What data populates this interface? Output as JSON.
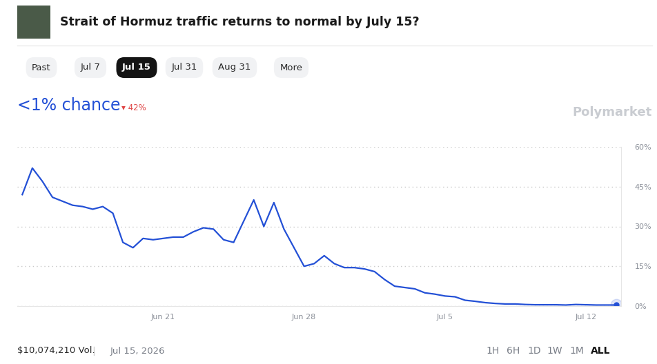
{
  "header": {
    "title": "Strait of Hormuz traffic returns to normal by July 15?",
    "tabs": [
      "Past",
      "Jul 7",
      "Jul 15",
      "Jul 31",
      "Aug 31",
      "More"
    ],
    "selected_tab": "Jul 15"
  },
  "headline": {
    "chance": "<1% chance",
    "change": "▾ 42%"
  },
  "brand": "Polymarket",
  "footer": {
    "volume": "$10,074,210 Vol.",
    "end_date": "Jul 15, 2026",
    "ranges": [
      "1H",
      "6H",
      "1D",
      "1W",
      "1M",
      "ALL"
    ],
    "selected_range": "ALL"
  },
  "chart_data": {
    "type": "line",
    "color": "#2350d6",
    "grid": true,
    "categories": [
      null,
      null,
      null,
      null,
      null,
      null,
      null,
      null,
      null,
      null,
      null,
      null,
      null,
      null,
      "Jun 21",
      null,
      null,
      null,
      null,
      null,
      null,
      null,
      null,
      null,
      null,
      null,
      null,
      null,
      "Jun 28",
      null,
      null,
      null,
      null,
      null,
      null,
      null,
      null,
      null,
      null,
      null,
      null,
      null,
      "Jul 5",
      null,
      null,
      null,
      null,
      null,
      null,
      null,
      null,
      null,
      null,
      null,
      null,
      null,
      "Jul 12",
      null,
      null,
      null
    ],
    "values": [
      42,
      52,
      47,
      41,
      39.5,
      38,
      37.5,
      36.5,
      37.5,
      35,
      24,
      22,
      25.5,
      25,
      25.5,
      26,
      26,
      28,
      29.5,
      29,
      25,
      24,
      32,
      40,
      30,
      39,
      29,
      22,
      15,
      16,
      19,
      16,
      14.5,
      14.5,
      14,
      13,
      10,
      7.5,
      7,
      6.5,
      5,
      4.5,
      3.8,
      3.5,
      2.2,
      1.8,
      1.3,
      1,
      0.8,
      0.8,
      0.6,
      0.5,
      0.5,
      0.5,
      0.4,
      0.6,
      0.5,
      0.4,
      0.4,
      0.4
    ],
    "ylim": [
      0,
      60
    ],
    "yticks": [
      {
        "value": 0,
        "label": "0%"
      },
      {
        "value": 15,
        "label": "15%"
      },
      {
        "value": 30,
        "label": "30%"
      },
      {
        "value": 45,
        "label": "45%"
      },
      {
        "value": 60,
        "label": "60%"
      }
    ]
  }
}
